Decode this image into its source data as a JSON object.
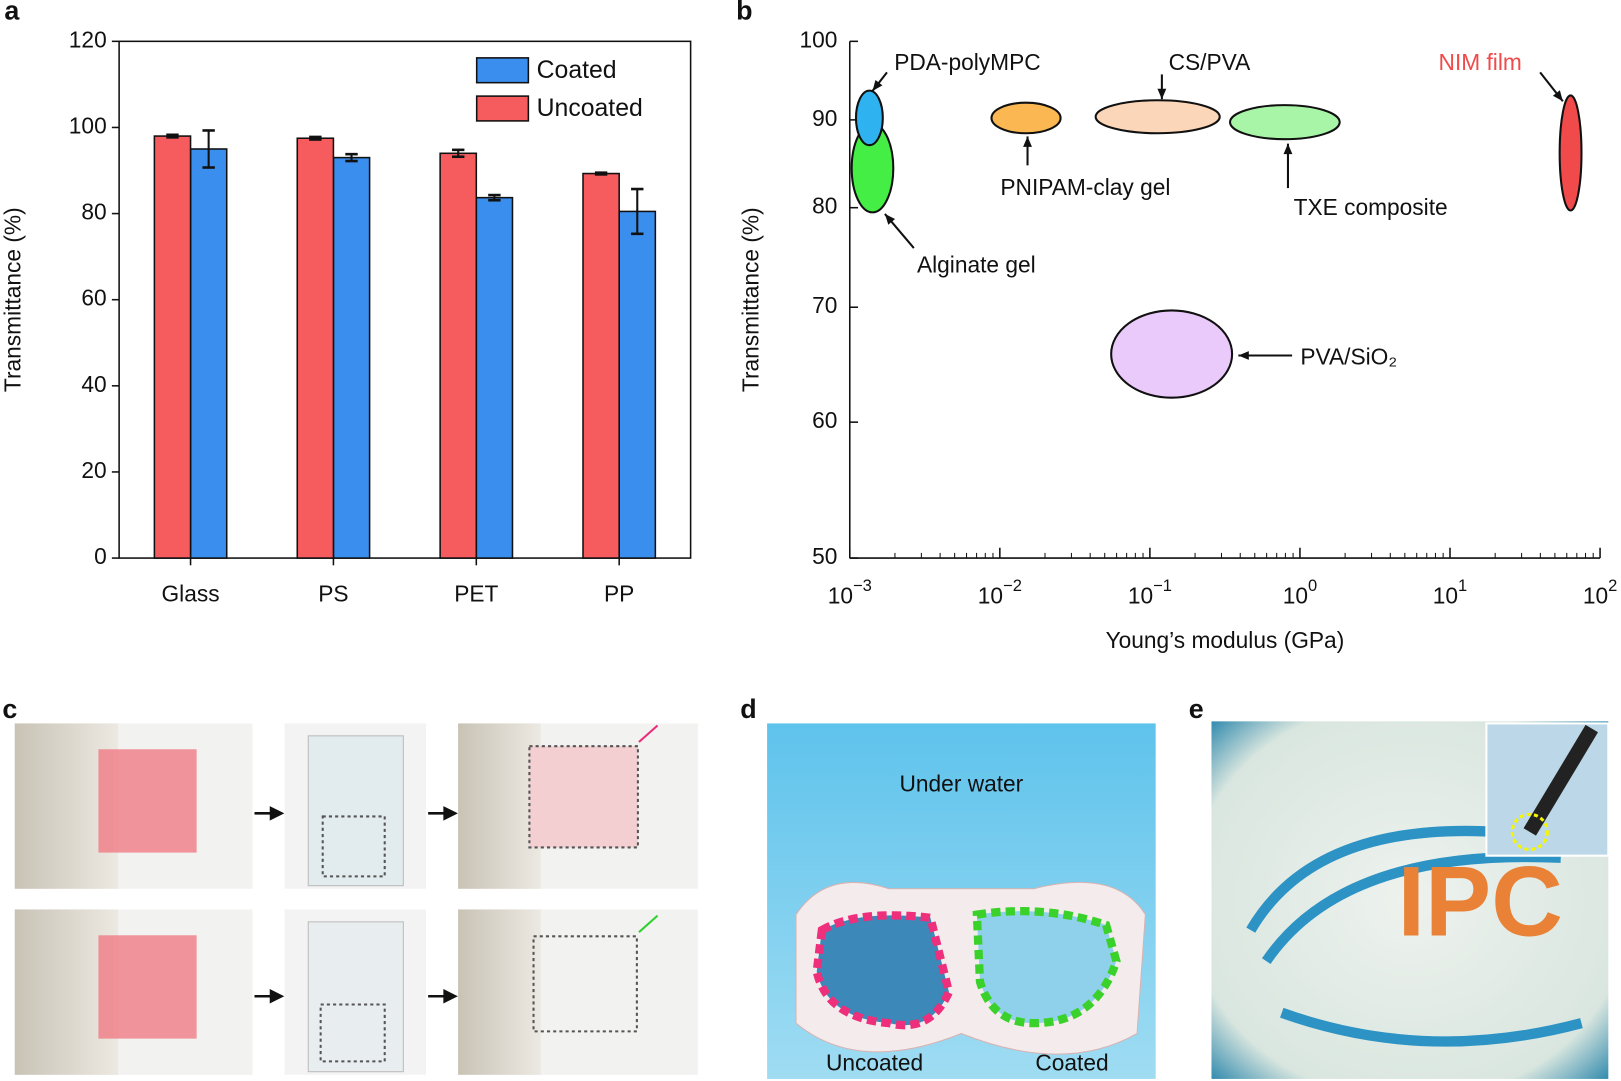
{
  "chart_data": [
    {
      "type": "bar",
      "label": "a",
      "ylabel": "Transmittance (%)",
      "categories": [
        "Glass",
        "PS",
        "PET",
        "PP"
      ],
      "series": [
        {
          "name": "Coated",
          "color": "#3a8eee",
          "values": [
            95,
            93,
            83.7,
            80.5
          ],
          "errors": [
            4.3,
            0.8,
            0.6,
            5.2
          ]
        },
        {
          "name": "Uncoated",
          "color": "#f65b5e",
          "values": [
            98,
            97.5,
            94,
            89.3
          ],
          "errors": [
            0.3,
            0.3,
            0.8,
            0.2
          ]
        }
      ],
      "ylim": [
        0,
        120
      ],
      "yticks": [
        0,
        20,
        40,
        60,
        80,
        100,
        120
      ],
      "legend": "upper right"
    },
    {
      "type": "scatter",
      "label": "b",
      "ylabel": "Transmittance (%)",
      "xlabel": "Young’s modulus (GPa)",
      "xlog": true,
      "ylog": true,
      "xlim": [
        0.001,
        100
      ],
      "xticks": [
        {
          "value": 0.001,
          "label": "10−3"
        },
        {
          "value": 0.01,
          "label": "10−2"
        },
        {
          "value": 0.1,
          "label": "10−1"
        },
        {
          "value": 1,
          "label": "100"
        },
        {
          "value": 10,
          "label": "101"
        },
        {
          "value": 100,
          "label": "102"
        }
      ],
      "ylim": [
        50,
        100
      ],
      "yticks": [
        50,
        60,
        70,
        80,
        90,
        100
      ],
      "points": [
        {
          "name": "Alginate gel",
          "color": "#45ee45",
          "x": [
            0.00103,
            0.00195
          ],
          "y": [
            79.5,
            89.5
          ]
        },
        {
          "name": "PDA-polyMPC",
          "color": "#2fb3f0",
          "x": [
            0.0011,
            0.00166
          ],
          "y": [
            87.0,
            93.6
          ]
        },
        {
          "name": "PNIPAM-clay gel",
          "color": "#fbb752",
          "x": [
            0.0088,
            0.0254
          ],
          "y": [
            88.4,
            92.1
          ]
        },
        {
          "name": "CS/PVA",
          "color": "#fcd6b8",
          "x": [
            0.0435,
            0.292
          ],
          "y": [
            88.4,
            92.4
          ]
        },
        {
          "name": "TXE composite",
          "color": "#a8f5a8",
          "x": [
            0.342,
            1.84
          ],
          "y": [
            87.7,
            91.8
          ]
        },
        {
          "name": "NIM film",
          "color": "#f04a4a",
          "label_color": "#f04a4a",
          "x": [
            53.8,
            75.2
          ],
          "y": [
            79.7,
            93.0
          ]
        },
        {
          "name": "PVA/SiO₂",
          "color": "#eac9fb",
          "x": [
            0.0552,
            0.353
          ],
          "y": [
            62.0,
            69.7
          ]
        }
      ]
    }
  ],
  "panels": [
    {
      "label": "c"
    },
    {
      "label": "d",
      "caption": "Under water",
      "left": "Uncoated",
      "right": "Coated"
    },
    {
      "label": "e",
      "logo": "IPC"
    }
  ]
}
